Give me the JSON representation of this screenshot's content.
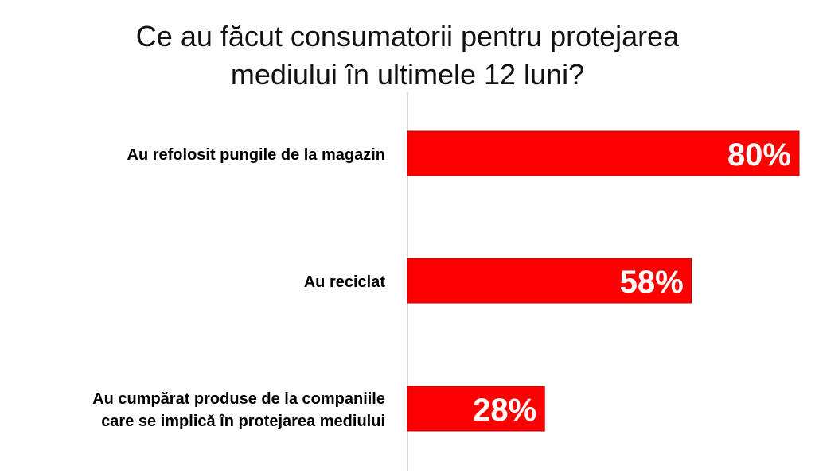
{
  "chart_data": {
    "type": "bar",
    "orientation": "horizontal",
    "title": "Ce au făcut consumatorii pentru protejarea\nmediului în ultimele 12 luni?",
    "categories": [
      [
        "Au refolosit pungile de la magazin"
      ],
      [
        "Au reciclat"
      ],
      [
        "Au cumpărat produse de la companiile",
        "care se implică în protejarea mediului"
      ]
    ],
    "values": [
      80,
      58,
      28
    ],
    "data_labels": [
      "80%",
      "58%",
      "28%"
    ],
    "value_unit": "%",
    "xlim": [
      0,
      80
    ],
    "grid": false,
    "legend": "none",
    "colors": {
      "bar": "#ff0000",
      "bar_border": "#c00000",
      "data_label": "#ffffff",
      "axis": "#d9d9d9",
      "category_label": "#000000"
    }
  }
}
